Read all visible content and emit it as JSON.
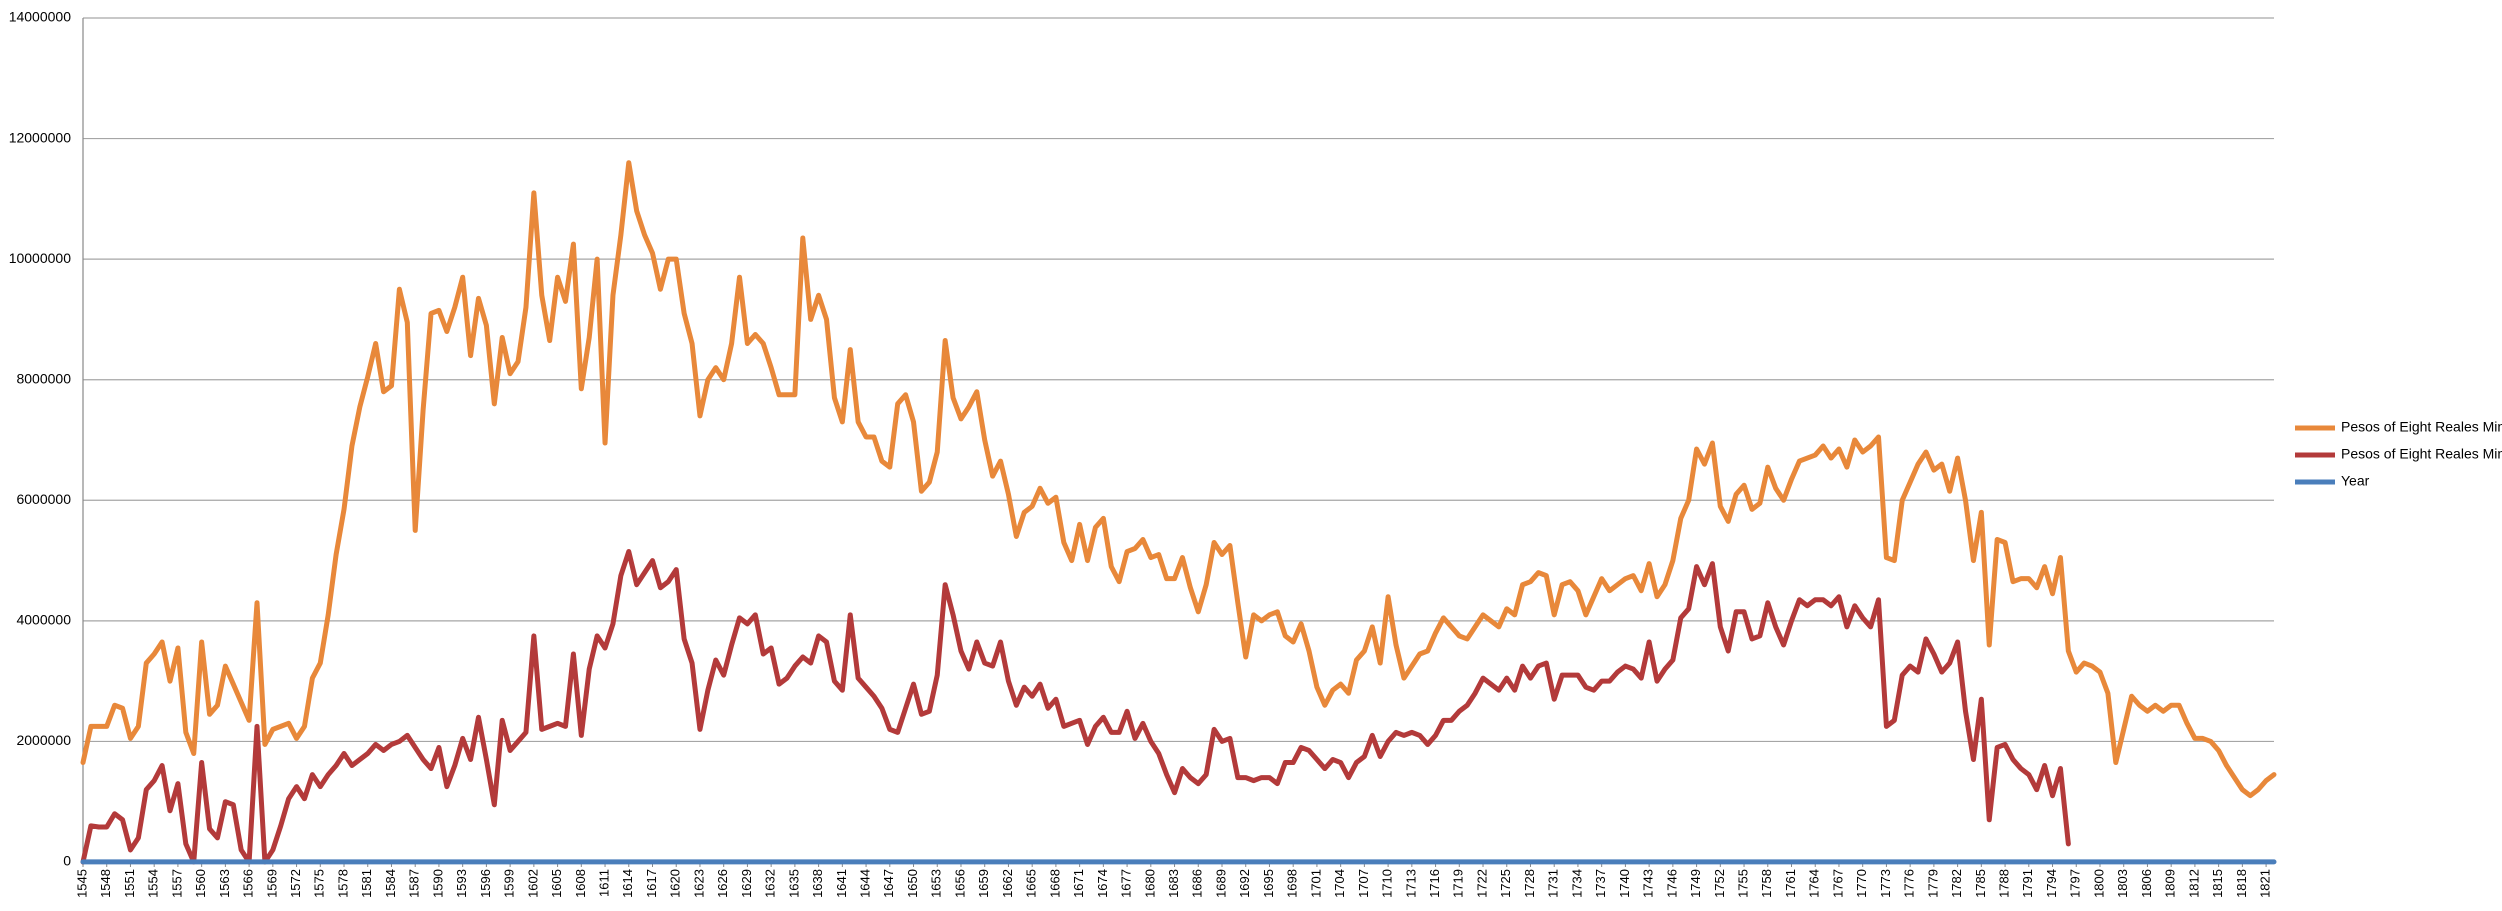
{
  "chart_data": {
    "type": "line",
    "categories": [
      "1545",
      null,
      null,
      "1548",
      null,
      null,
      "1551",
      null,
      null,
      "1554",
      null,
      null,
      "1557",
      null,
      null,
      "1560",
      null,
      null,
      "1563",
      null,
      null,
      "1566",
      null,
      null,
      "1569",
      null,
      null,
      "1572",
      null,
      null,
      "1575",
      null,
      null,
      "1578",
      null,
      null,
      "1581",
      null,
      null,
      "1584",
      null,
      null,
      "1587",
      null,
      null,
      "1590",
      null,
      null,
      "1593",
      null,
      null,
      "1596",
      null,
      null,
      "1599",
      null,
      null,
      "1602",
      null,
      null,
      "1605",
      null,
      null,
      "1608",
      null,
      null,
      "1611",
      null,
      null,
      "1614",
      null,
      null,
      "1617",
      null,
      null,
      "1620",
      null,
      null,
      "1623",
      null,
      null,
      "1626",
      null,
      null,
      "1629",
      null,
      null,
      "1632",
      null,
      null,
      "1635",
      null,
      null,
      "1638",
      null,
      null,
      "1641",
      null,
      null,
      "1644",
      null,
      null,
      "1647",
      null,
      null,
      "1650",
      null,
      null,
      "1653",
      null,
      null,
      "1656",
      null,
      null,
      "1659",
      null,
      null,
      "1662",
      null,
      null,
      "1665",
      null,
      null,
      "1668",
      null,
      null,
      "1671",
      null,
      null,
      "1674",
      null,
      null,
      "1677",
      null,
      null,
      "1680",
      null,
      null,
      "1683",
      null,
      null,
      "1686",
      null,
      null,
      "1689",
      null,
      null,
      "1692",
      null,
      null,
      "1695",
      null,
      null,
      "1698",
      null,
      null,
      "1701",
      null,
      null,
      "1704",
      null,
      null,
      "1707",
      null,
      null,
      "1710",
      null,
      null,
      "1713",
      null,
      null,
      "1716",
      null,
      null,
      "1719",
      null,
      null,
      "1722",
      null,
      null,
      "1725",
      null,
      null,
      "1728",
      null,
      null,
      "1731",
      null,
      null,
      "1734",
      null,
      null,
      "1737",
      null,
      null,
      "1740",
      null,
      null,
      "1743",
      null,
      null,
      "1746",
      null,
      null,
      "1749",
      null,
      null,
      "1752",
      null,
      null,
      "1755",
      null,
      null,
      "1758",
      null,
      null,
      "1761",
      null,
      null,
      "1764",
      null,
      null,
      "1767",
      null,
      null,
      "1770",
      null,
      null,
      "1773",
      null,
      null,
      "1776",
      null,
      null,
      "1779",
      null,
      null,
      "1782",
      null,
      null,
      "1785",
      null,
      null,
      "1788",
      null,
      null,
      "1791",
      null,
      null,
      "1794",
      null,
      null,
      "1797",
      null,
      null,
      "1800",
      null,
      null,
      "1803",
      null,
      null,
      "1806",
      null,
      null,
      "1809",
      null,
      null,
      "1812",
      null,
      null,
      "1815",
      null,
      null,
      "1818",
      null,
      null,
      "1821",
      null
    ],
    "series": [
      {
        "name": "Pesos of Eight Reales Mine",
        "color": "#e8883a",
        "values": [
          1650000,
          2250000,
          2250000,
          2250000,
          2600000,
          2550000,
          2050000,
          2250000,
          3300000,
          3450000,
          3650000,
          3000000,
          3550000,
          2150000,
          1800000,
          3650000,
          2450000,
          2600000,
          3250000,
          2950000,
          2650000,
          2350000,
          4300000,
          1950000,
          2200000,
          2250000,
          2300000,
          2050000,
          2250000,
          3050000,
          3300000,
          4100000,
          5100000,
          5850000,
          6900000,
          7550000,
          8050000,
          8600000,
          7800000,
          7900000,
          9500000,
          8950000,
          5500000,
          7500000,
          9100000,
          9150000,
          8800000,
          9200000,
          9700000,
          8400000,
          9350000,
          8900000,
          7600000,
          8700000,
          8100000,
          8300000,
          9200000,
          11100000,
          9400000,
          8650000,
          9700000,
          9300000,
          10250000,
          7850000,
          8700000,
          10000000,
          6950000,
          9400000,
          10400000,
          11600000,
          10800000,
          10400000,
          10100000,
          9500000,
          10000000,
          10000000,
          9100000,
          8600000,
          7400000,
          8000000,
          8200000,
          8000000,
          8600000,
          9700000,
          8600000,
          8750000,
          8600000,
          8200000,
          7750000,
          7750000,
          7750000,
          10350000,
          9000000,
          9400000,
          9000000,
          7700000,
          7300000,
          8500000,
          7300000,
          7050000,
          7050000,
          6650000,
          6550000,
          7600000,
          7750000,
          7300000,
          6150000,
          6300000,
          6800000,
          8650000,
          7700000,
          7350000,
          7550000,
          7800000,
          7000000,
          6400000,
          6650000,
          6100000,
          5400000,
          5800000,
          5900000,
          6200000,
          5950000,
          6050000,
          5300000,
          5000000,
          5600000,
          5000000,
          5550000,
          5700000,
          4900000,
          4650000,
          5150000,
          5200000,
          5350000,
          5050000,
          5100000,
          4700000,
          4700000,
          5050000,
          4550000,
          4150000,
          4600000,
          5300000,
          5100000,
          5250000,
          4300000,
          3400000,
          4100000,
          4000000,
          4100000,
          4150000,
          3750000,
          3650000,
          3950000,
          3500000,
          2900000,
          2600000,
          2850000,
          2950000,
          2800000,
          3350000,
          3500000,
          3900000,
          3300000,
          4400000,
          3600000,
          3050000,
          3250000,
          3450000,
          3500000,
          3800000,
          4050000,
          3900000,
          3750000,
          3700000,
          3900000,
          4100000,
          4000000,
          3900000,
          4200000,
          4100000,
          4600000,
          4650000,
          4800000,
          4750000,
          4100000,
          4600000,
          4650000,
          4500000,
          4100000,
          4400000,
          4700000,
          4500000,
          4600000,
          4700000,
          4750000,
          4500000,
          4950000,
          4400000,
          4600000,
          5000000,
          5700000,
          6000000,
          6850000,
          6600000,
          6950000,
          5900000,
          5650000,
          6100000,
          6250000,
          5850000,
          5950000,
          6550000,
          6200000,
          6000000,
          6350000,
          6650000,
          6700000,
          6750000,
          6900000,
          6700000,
          6850000,
          6550000,
          7000000,
          6800000,
          6900000,
          7050000,
          5050000,
          5000000,
          6000000,
          6300000,
          6600000,
          6800000,
          6500000,
          6600000,
          6150000,
          6700000,
          6000000,
          5000000,
          5800000,
          3600000,
          5350000,
          5300000,
          4650000,
          4700000,
          4700000,
          4550000,
          4900000,
          4450000,
          5050000,
          3500000,
          3150000,
          3300000,
          3250000,
          3150000,
          2800000,
          1650000,
          2200000,
          2750000,
          2600000,
          2500000,
          2600000,
          2500000,
          2600000,
          2600000,
          2300000,
          2050000,
          2050000,
          2000000,
          1850000,
          1600000,
          1400000,
          1200000,
          1100000,
          1200000,
          1350000,
          1450000
        ]
      },
      {
        "name": "Pesos of Eight Reales Mint",
        "color": "#b33a3a",
        "values": [
          0,
          600000,
          580000,
          580000,
          800000,
          700000,
          200000,
          400000,
          1200000,
          1350000,
          1600000,
          850000,
          1300000,
          300000,
          0,
          1650000,
          550000,
          400000,
          1000000,
          950000,
          200000,
          0,
          2250000,
          0,
          200000,
          600000,
          1050000,
          1250000,
          1050000,
          1450000,
          1250000,
          1450000,
          1600000,
          1800000,
          1600000,
          1700000,
          1800000,
          1950000,
          1850000,
          1950000,
          2000000,
          2100000,
          1900000,
          1700000,
          1550000,
          1900000,
          1250000,
          1600000,
          2050000,
          1700000,
          2400000,
          1700000,
          950000,
          2350000,
          1850000,
          2000000,
          2150000,
          3750000,
          2200000,
          2250000,
          2300000,
          2250000,
          3450000,
          2100000,
          3200000,
          3750000,
          3550000,
          3950000,
          4750000,
          5150000,
          4600000,
          4800000,
          5000000,
          4550000,
          4650000,
          4850000,
          3700000,
          3300000,
          2200000,
          2850000,
          3350000,
          3100000,
          3600000,
          4050000,
          3950000,
          4100000,
          3450000,
          3550000,
          2950000,
          3050000,
          3250000,
          3400000,
          3300000,
          3750000,
          3650000,
          3000000,
          2850000,
          4100000,
          3050000,
          2900000,
          2750000,
          2550000,
          2200000,
          2150000,
          2550000,
          2950000,
          2450000,
          2500000,
          3100000,
          4600000,
          4100000,
          3500000,
          3200000,
          3650000,
          3300000,
          3250000,
          3650000,
          3000000,
          2600000,
          2900000,
          2750000,
          2950000,
          2550000,
          2700000,
          2250000,
          2300000,
          2350000,
          1950000,
          2250000,
          2400000,
          2150000,
          2150000,
          2500000,
          2050000,
          2300000,
          2000000,
          1800000,
          1450000,
          1150000,
          1550000,
          1400000,
          1300000,
          1450000,
          2200000,
          2000000,
          2050000,
          1400000,
          1400000,
          1350000,
          1400000,
          1400000,
          1300000,
          1650000,
          1650000,
          1900000,
          1850000,
          1700000,
          1550000,
          1700000,
          1650000,
          1400000,
          1650000,
          1750000,
          2100000,
          1750000,
          2000000,
          2150000,
          2100000,
          2150000,
          2100000,
          1950000,
          2100000,
          2350000,
          2350000,
          2500000,
          2600000,
          2800000,
          3050000,
          2950000,
          2850000,
          3050000,
          2850000,
          3250000,
          3050000,
          3250000,
          3300000,
          2700000,
          3100000,
          3100000,
          3100000,
          2900000,
          2850000,
          3000000,
          3000000,
          3150000,
          3250000,
          3200000,
          3050000,
          3650000,
          3000000,
          3200000,
          3350000,
          4050000,
          4200000,
          4900000,
          4600000,
          4950000,
          3900000,
          3500000,
          4150000,
          4150000,
          3700000,
          3750000,
          4300000,
          3900000,
          3600000,
          4000000,
          4350000,
          4250000,
          4350000,
          4350000,
          4250000,
          4400000,
          3900000,
          4250000,
          4050000,
          3900000,
          4350000,
          2250000,
          2350000,
          3100000,
          3250000,
          3150000,
          3700000,
          3450000,
          3150000,
          3300000,
          3650000,
          2500000,
          1700000,
          2700000,
          700000,
          1900000,
          1950000,
          1700000,
          1550000,
          1450000,
          1200000,
          1600000,
          1100000,
          1550000,
          300000,
          null,
          null,
          null,
          null,
          null,
          null,
          null,
          null,
          null,
          null,
          null,
          null,
          null,
          null,
          null,
          null,
          null,
          null,
          null,
          null,
          null,
          null,
          null,
          null,
          null,
          null
        ]
      },
      {
        "name": "Year",
        "color": "#4a7ebb",
        "values": [
          1545,
          1546,
          1547,
          1548,
          1549,
          1550,
          1551,
          1552,
          1553,
          1554,
          1555,
          1556,
          1557,
          1558,
          1559,
          1560,
          1561,
          1562,
          1563,
          1564,
          1565,
          1566,
          1567,
          1568,
          1569,
          1570,
          1571,
          1572,
          1573,
          1574,
          1575,
          1576,
          1577,
          1578,
          1579,
          1580,
          1581,
          1582,
          1583,
          1584,
          1585,
          1586,
          1587,
          1588,
          1589,
          1590,
          1591,
          1592,
          1593,
          1594,
          1595,
          1596,
          1597,
          1598,
          1599,
          1600,
          1601,
          1602,
          1603,
          1604,
          1605,
          1606,
          1607,
          1608,
          1609,
          1610,
          1611,
          1612,
          1613,
          1614,
          1615,
          1616,
          1617,
          1618,
          1619,
          1620,
          1621,
          1622,
          1623,
          1624,
          1625,
          1626,
          1627,
          1628,
          1629,
          1630,
          1631,
          1632,
          1633,
          1634,
          1635,
          1636,
          1637,
          1638,
          1639,
          1640,
          1641,
          1642,
          1643,
          1644,
          1645,
          1646,
          1647,
          1648,
          1649,
          1650,
          1651,
          1652,
          1653,
          1654,
          1655,
          1656,
          1657,
          1658,
          1659,
          1660,
          1661,
          1662,
          1663,
          1664,
          1665,
          1666,
          1667,
          1668,
          1669,
          1670,
          1671,
          1672,
          1673,
          1674,
          1675,
          1676,
          1677,
          1678,
          1679,
          1680,
          1681,
          1682,
          1683,
          1684,
          1685,
          1686,
          1687,
          1688,
          1689,
          1690,
          1691,
          1692,
          1693,
          1694,
          1695,
          1696,
          1697,
          1698,
          1699,
          1700,
          1701,
          1702,
          1703,
          1704,
          1705,
          1706,
          1707,
          1708,
          1709,
          1710,
          1711,
          1712,
          1713,
          1714,
          1715,
          1716,
          1717,
          1718,
          1719,
          1720,
          1721,
          1722,
          1723,
          1724,
          1725,
          1726,
          1727,
          1728,
          1729,
          1730,
          1731,
          1732,
          1733,
          1734,
          1735,
          1736,
          1737,
          1738,
          1739,
          1740,
          1741,
          1742,
          1743,
          1744,
          1745,
          1746,
          1747,
          1748,
          1749,
          1750,
          1751,
          1752,
          1753,
          1754,
          1755,
          1756,
          1757,
          1758,
          1759,
          1760,
          1761,
          1762,
          1763,
          1764,
          1765,
          1766,
          1767,
          1768,
          1769,
          1770,
          1771,
          1772,
          1773,
          1774,
          1775,
          1776,
          1777,
          1778,
          1779,
          1780,
          1781,
          1782,
          1783,
          1784,
          1785,
          1786,
          1787,
          1788,
          1789,
          1790,
          1791,
          1792,
          1793,
          1794,
          1795,
          1796,
          1797,
          1798,
          1799,
          1800,
          1801,
          1802,
          1803,
          1804,
          1805,
          1806,
          1807,
          1808,
          1809,
          1810,
          1811,
          1812,
          1813,
          1814,
          1815,
          1816,
          1817,
          1818,
          1819,
          1820,
          1821,
          1822
        ]
      }
    ],
    "ylim": [
      0,
      14000000
    ],
    "yticks": [
      0,
      2000000,
      4000000,
      6000000,
      8000000,
      10000000,
      12000000,
      14000000
    ],
    "grid": true,
    "legend": "right"
  }
}
